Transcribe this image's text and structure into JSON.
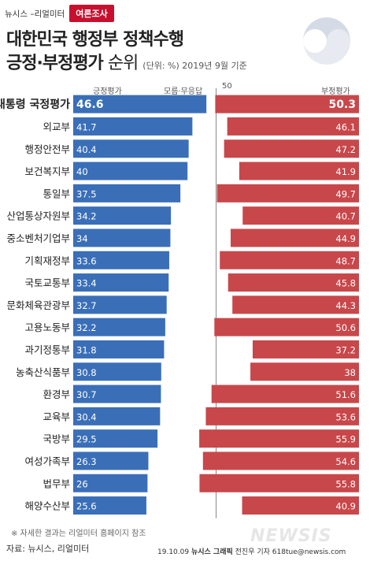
{
  "header": {
    "brand": "뉴시스 –리얼미터",
    "tag": "여론조사",
    "title_line1": "대한민국 행정부 정책수행",
    "title_line2": "긍정·부정평가",
    "title_suffix": "순위",
    "subtitle": "(단위: %)  2019년 9월 기준"
  },
  "colors": {
    "positive": "#3a6fb8",
    "negative": "#c8474a",
    "accent": "#c8102e"
  },
  "chart_data": {
    "type": "bar",
    "subtype": "diverging",
    "positive_label": "긍정평가",
    "neutral_label": "모름·무응답",
    "negative_label": "부정평가",
    "midpoint_label": "50",
    "categories": [
      "대통령 국정평가",
      "외교부",
      "행정안전부",
      "보건복지부",
      "통일부",
      "산업통상자원부",
      "중소벤처기업부",
      "기획재정부",
      "국토교통부",
      "문화체육관광부",
      "고용노동부",
      "과기정통부",
      "농축산식품부",
      "환경부",
      "교육부",
      "국방부",
      "여성가족부",
      "법무부",
      "해양수산부"
    ],
    "series": [
      {
        "name": "긍정평가",
        "values": [
          46.6,
          41.7,
          40.4,
          40,
          37.5,
          34.2,
          34,
          33.6,
          33.4,
          32.7,
          32.2,
          31.8,
          30.8,
          30.7,
          30.4,
          29.5,
          26.3,
          26,
          25.6
        ]
      },
      {
        "name": "부정평가",
        "values": [
          50.3,
          46.1,
          47.2,
          41.9,
          49.7,
          40.7,
          44.9,
          48.7,
          45.8,
          44.3,
          50.6,
          37.2,
          38,
          51.6,
          53.6,
          55.9,
          54.6,
          55.8,
          40.9
        ]
      }
    ]
  },
  "footer": {
    "note": "※ 자세한 결과는 리얼미터 홈페이지 참조",
    "source": "자료: 뉴시스, 리얼미터",
    "credit_date": "19.10.09",
    "credit_org": "뉴시스 그래픽",
    "credit_author": "전진우 기자 618tue@newsis.com",
    "watermark": "NEWSIS"
  }
}
